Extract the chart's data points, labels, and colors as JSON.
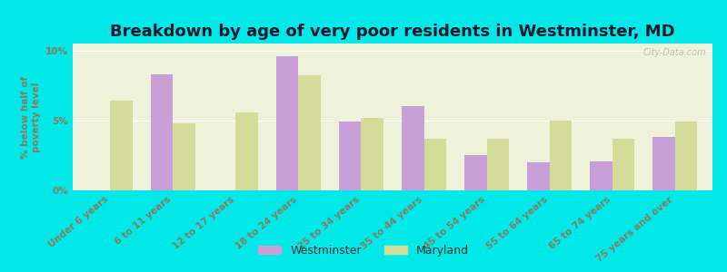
{
  "title": "Breakdown by age of very poor residents in Westminster, MD",
  "ylabel": "% below half of\npoverty level",
  "categories": [
    "Under 6 years",
    "6 to 11 years",
    "12 to 17 years",
    "18 to 24 years",
    "25 to 34 years",
    "35 to 44 years",
    "45 to 54 years",
    "55 to 64 years",
    "65 to 74 years",
    "75 years and over"
  ],
  "westminster": [
    0,
    8.3,
    0,
    9.6,
    4.9,
    6.0,
    2.5,
    2.0,
    2.1,
    3.8
  ],
  "maryland": [
    6.4,
    4.8,
    5.6,
    8.2,
    5.2,
    3.7,
    3.7,
    5.0,
    3.7,
    4.9
  ],
  "westminster_color": "#c8a0d8",
  "maryland_color": "#d4dc9a",
  "background_color": "#00e8e8",
  "plot_bg_color": "#eef2d8",
  "title_color": "#1a1a2e",
  "tick_color": "#808060",
  "ylabel_color": "#808060",
  "legend_text_color": "#303030",
  "ylim": [
    0,
    10.5
  ],
  "yticks": [
    0,
    5,
    10
  ],
  "ytick_labels": [
    "0%",
    "5%",
    "10%"
  ],
  "bar_width": 0.35,
  "title_fontsize": 13,
  "legend_fontsize": 9,
  "tick_fontsize": 7.5,
  "watermark": "City-Data.com"
}
